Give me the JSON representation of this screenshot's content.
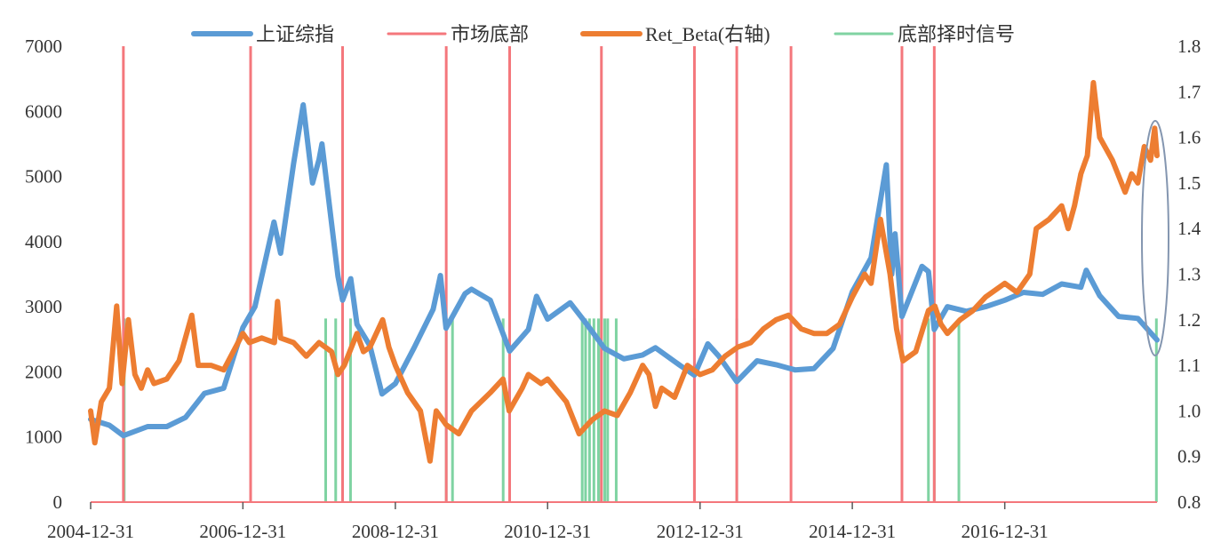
{
  "chart_data": {
    "type": "line",
    "title": "",
    "xlabel": "",
    "ylabel": "",
    "x_tick_labels": [
      "2004-12-31",
      "2006-12-31",
      "2008-12-31",
      "2010-12-31",
      "2012-12-31",
      "2014-12-31",
      "2016-12-31"
    ],
    "x_range": [
      "2004-12-31",
      "2018-12-31"
    ],
    "y_left": {
      "ticks": [
        0,
        1000,
        2000,
        3000,
        4000,
        5000,
        6000,
        7000
      ],
      "range": [
        0,
        7000
      ]
    },
    "y_right": {
      "ticks": [
        0.8,
        0.9,
        1.0,
        1.1,
        1.2,
        1.3,
        1.4,
        1.5,
        1.6,
        1.7,
        1.8
      ],
      "range": [
        0.8,
        1.8
      ]
    },
    "grid": false,
    "legend_position": "top",
    "colors": {
      "index": "#5B9BD5",
      "bottom": "#F4777C",
      "retbeta": "#ED7D31",
      "signal": "#7FD3A2",
      "ellipse": "#8496B0"
    },
    "series": [
      {
        "name": "上证综指",
        "axis": "left",
        "points": [
          [
            "2004-12-31",
            1270
          ],
          [
            "2005-03-31",
            1180
          ],
          [
            "2005-06-06",
            1020
          ],
          [
            "2005-09-30",
            1160
          ],
          [
            "2005-12-31",
            1160
          ],
          [
            "2006-03-31",
            1300
          ],
          [
            "2006-06-30",
            1670
          ],
          [
            "2006-09-30",
            1750
          ],
          [
            "2006-12-31",
            2680
          ],
          [
            "2007-02-27",
            3000
          ],
          [
            "2007-05-29",
            4300
          ],
          [
            "2007-06-30",
            3820
          ],
          [
            "2007-08-31",
            5200
          ],
          [
            "2007-10-16",
            6100
          ],
          [
            "2007-11-30",
            4900
          ],
          [
            "2007-12-31",
            5260
          ],
          [
            "2008-01-14",
            5500
          ],
          [
            "2008-03-31",
            3470
          ],
          [
            "2008-04-22",
            3100
          ],
          [
            "2008-05-31",
            3430
          ],
          [
            "2008-06-30",
            2730
          ],
          [
            "2008-08-31",
            2400
          ],
          [
            "2008-10-28",
            1660
          ],
          [
            "2008-12-31",
            1820
          ],
          [
            "2009-03-31",
            2370
          ],
          [
            "2009-06-30",
            2960
          ],
          [
            "2009-08-04",
            3480
          ],
          [
            "2009-08-31",
            2670
          ],
          [
            "2009-11-30",
            3200
          ],
          [
            "2009-12-31",
            3270
          ],
          [
            "2010-03-31",
            3100
          ],
          [
            "2010-07-02",
            2320
          ],
          [
            "2010-09-30",
            2650
          ],
          [
            "2010-11-08",
            3160
          ],
          [
            "2010-12-31",
            2810
          ],
          [
            "2011-04-18",
            3060
          ],
          [
            "2011-06-30",
            2760
          ],
          [
            "2011-09-30",
            2360
          ],
          [
            "2011-12-31",
            2200
          ],
          [
            "2012-03-31",
            2260
          ],
          [
            "2012-05-31",
            2370
          ],
          [
            "2012-09-30",
            2090
          ],
          [
            "2012-12-04",
            1950
          ],
          [
            "2013-02-06",
            2430
          ],
          [
            "2013-03-31",
            2240
          ],
          [
            "2013-06-25",
            1850
          ],
          [
            "2013-09-30",
            2170
          ],
          [
            "2013-12-31",
            2110
          ],
          [
            "2014-03-31",
            2030
          ],
          [
            "2014-06-30",
            2050
          ],
          [
            "2014-09-30",
            2360
          ],
          [
            "2014-12-31",
            3230
          ],
          [
            "2015-03-31",
            3750
          ],
          [
            "2015-06-12",
            5180
          ],
          [
            "2015-07-08",
            3500
          ],
          [
            "2015-07-24",
            4120
          ],
          [
            "2015-08-26",
            2850
          ],
          [
            "2015-11-30",
            3620
          ],
          [
            "2015-12-31",
            3540
          ],
          [
            "2016-01-28",
            2650
          ],
          [
            "2016-03-31",
            3000
          ],
          [
            "2016-06-30",
            2930
          ],
          [
            "2016-09-30",
            3000
          ],
          [
            "2016-12-31",
            3100
          ],
          [
            "2017-03-31",
            3220
          ],
          [
            "2017-06-30",
            3190
          ],
          [
            "2017-09-30",
            3350
          ],
          [
            "2017-12-31",
            3300
          ],
          [
            "2018-01-26",
            3560
          ],
          [
            "2018-03-31",
            3170
          ],
          [
            "2018-06-30",
            2850
          ],
          [
            "2018-09-30",
            2820
          ],
          [
            "2018-12-31",
            2490
          ]
        ]
      },
      {
        "name": "Ret_Beta(右轴)",
        "axis": "right",
        "points": [
          [
            "2004-12-31",
            1.0
          ],
          [
            "2005-01-20",
            0.93
          ],
          [
            "2005-02-20",
            1.02
          ],
          [
            "2005-03-31",
            1.05
          ],
          [
            "2005-05-05",
            1.23
          ],
          [
            "2005-05-31",
            1.06
          ],
          [
            "2005-06-30",
            1.2
          ],
          [
            "2005-07-31",
            1.08
          ],
          [
            "2005-08-31",
            1.05
          ],
          [
            "2005-09-30",
            1.09
          ],
          [
            "2005-10-31",
            1.06
          ],
          [
            "2005-12-31",
            1.07
          ],
          [
            "2006-02-28",
            1.11
          ],
          [
            "2006-04-30",
            1.21
          ],
          [
            "2006-05-31",
            1.1
          ],
          [
            "2006-07-31",
            1.1
          ],
          [
            "2006-09-30",
            1.09
          ],
          [
            "2006-12-31",
            1.17
          ],
          [
            "2007-01-31",
            1.15
          ],
          [
            "2007-03-31",
            1.16
          ],
          [
            "2007-05-31",
            1.15
          ],
          [
            "2007-06-15",
            1.24
          ],
          [
            "2007-06-30",
            1.16
          ],
          [
            "2007-08-31",
            1.15
          ],
          [
            "2007-10-31",
            1.12
          ],
          [
            "2007-12-31",
            1.15
          ],
          [
            "2008-02-29",
            1.13
          ],
          [
            "2008-03-31",
            1.08
          ],
          [
            "2008-04-30",
            1.1
          ],
          [
            "2008-06-30",
            1.17
          ],
          [
            "2008-07-31",
            1.13
          ],
          [
            "2008-08-31",
            1.14
          ],
          [
            "2008-10-31",
            1.2
          ],
          [
            "2008-11-30",
            1.14
          ],
          [
            "2008-12-31",
            1.1
          ],
          [
            "2009-02-28",
            1.04
          ],
          [
            "2009-04-30",
            1.0
          ],
          [
            "2009-06-15",
            0.89
          ],
          [
            "2009-07-15",
            1.0
          ],
          [
            "2009-08-31",
            0.97
          ],
          [
            "2009-10-31",
            0.95
          ],
          [
            "2009-12-31",
            1.0
          ],
          [
            "2010-03-31",
            1.04
          ],
          [
            "2010-05-31",
            1.07
          ],
          [
            "2010-06-30",
            1.0
          ],
          [
            "2010-08-31",
            1.05
          ],
          [
            "2010-09-30",
            1.08
          ],
          [
            "2010-11-30",
            1.06
          ],
          [
            "2010-12-31",
            1.07
          ],
          [
            "2011-03-31",
            1.02
          ],
          [
            "2011-05-31",
            0.95
          ],
          [
            "2011-07-31",
            0.98
          ],
          [
            "2011-09-30",
            1.0
          ],
          [
            "2011-11-30",
            0.99
          ],
          [
            "2012-01-31",
            1.04
          ],
          [
            "2012-03-31",
            1.1
          ],
          [
            "2012-04-30",
            1.08
          ],
          [
            "2012-05-31",
            1.01
          ],
          [
            "2012-06-30",
            1.05
          ],
          [
            "2012-08-31",
            1.03
          ],
          [
            "2012-10-31",
            1.1
          ],
          [
            "2012-12-31",
            1.08
          ],
          [
            "2013-02-28",
            1.09
          ],
          [
            "2013-04-30",
            1.12
          ],
          [
            "2013-06-30",
            1.14
          ],
          [
            "2013-08-31",
            1.15
          ],
          [
            "2013-10-31",
            1.18
          ],
          [
            "2013-12-31",
            1.2
          ],
          [
            "2014-02-28",
            1.21
          ],
          [
            "2014-04-30",
            1.18
          ],
          [
            "2014-06-30",
            1.17
          ],
          [
            "2014-08-31",
            1.17
          ],
          [
            "2014-10-31",
            1.19
          ],
          [
            "2014-12-31",
            1.25
          ],
          [
            "2015-02-28",
            1.3
          ],
          [
            "2015-03-31",
            1.28
          ],
          [
            "2015-05-15",
            1.42
          ],
          [
            "2015-06-30",
            1.3
          ],
          [
            "2015-07-31",
            1.18
          ],
          [
            "2015-08-31",
            1.11
          ],
          [
            "2015-10-31",
            1.13
          ],
          [
            "2015-12-31",
            1.22
          ],
          [
            "2016-01-31",
            1.23
          ],
          [
            "2016-02-29",
            1.19
          ],
          [
            "2016-03-31",
            1.17
          ],
          [
            "2016-05-31",
            1.2
          ],
          [
            "2016-07-31",
            1.22
          ],
          [
            "2016-09-30",
            1.25
          ],
          [
            "2016-12-31",
            1.28
          ],
          [
            "2017-02-28",
            1.26
          ],
          [
            "2017-04-30",
            1.3
          ],
          [
            "2017-05-31",
            1.4
          ],
          [
            "2017-07-31",
            1.42
          ],
          [
            "2017-09-30",
            1.45
          ],
          [
            "2017-10-31",
            1.4
          ],
          [
            "2017-11-30",
            1.45
          ],
          [
            "2017-12-31",
            1.52
          ],
          [
            "2018-01-31",
            1.56
          ],
          [
            "2018-03-01",
            1.72
          ],
          [
            "2018-03-31",
            1.6
          ],
          [
            "2018-05-31",
            1.55
          ],
          [
            "2018-07-31",
            1.48
          ],
          [
            "2018-08-31",
            1.52
          ],
          [
            "2018-09-30",
            1.5
          ],
          [
            "2018-10-31",
            1.58
          ],
          [
            "2018-11-30",
            1.55
          ],
          [
            "2018-12-20",
            1.62
          ],
          [
            "2018-12-31",
            1.56
          ]
        ]
      },
      {
        "name": "市场底部",
        "type": "vertical-lines",
        "dates": [
          "2005-06-06",
          "2007-02-06",
          "2008-04-22",
          "2009-09-01",
          "2010-07-02",
          "2011-09-15",
          "2012-12-04",
          "2013-06-25",
          "2014-03-12",
          "2015-08-26",
          "2016-01-28"
        ]
      },
      {
        "name": "底部择时信号",
        "type": "vertical-lines",
        "dates": [
          "2005-06-10",
          "2007-02-06",
          "2008-02-01",
          "2008-03-20",
          "2008-04-22",
          "2008-05-30",
          "2009-09-01",
          "2009-10-01",
          "2010-06-01",
          "2011-06-15",
          "2011-07-01",
          "2011-07-20",
          "2011-08-10",
          "2011-09-01",
          "2011-09-15",
          "2011-10-01",
          "2011-10-15",
          "2011-11-25",
          "2012-12-04",
          "2013-06-25",
          "2015-12-31",
          "2016-01-28",
          "2016-05-25",
          "2018-12-28"
        ]
      }
    ]
  }
}
